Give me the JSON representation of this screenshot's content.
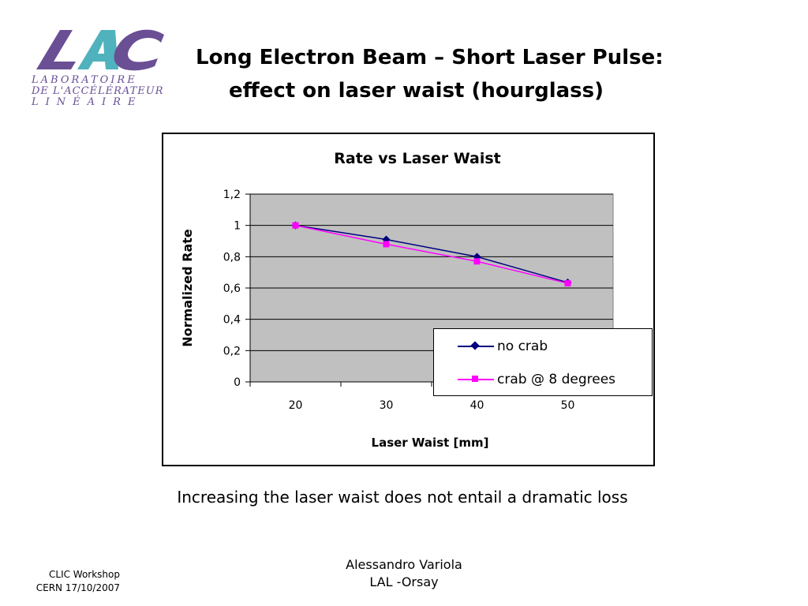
{
  "logo": {
    "line1": "LABORATOIRE",
    "line2": "DE L'ACCÉLÉRATEUR",
    "line3": "LINÉAIRE",
    "colors": {
      "purple": "#6a4f95",
      "teal": "#4fb2bd"
    }
  },
  "slide": {
    "title_line1": "Long Electron Beam – Short Laser Pulse:",
    "title_line2": "effect on laser waist (hourglass)",
    "caption": "Increasing the laser waist does not entail a dramatic loss",
    "footer_left_line1": "CLIC Workshop",
    "footer_left_line2": "CERN 17/10/2007",
    "footer_center_line1": "Alessandro Variola",
    "footer_center_line2": "LAL -Orsay"
  },
  "chart_data": {
    "type": "line",
    "title": "Rate vs Laser Waist",
    "xlabel": "Laser Waist [mm]",
    "ylabel": "Normalized Rate",
    "categories": [
      "20",
      "30",
      "40",
      "50"
    ],
    "ylim": [
      0,
      1.2
    ],
    "yticks": [
      "0",
      "0,2",
      "0,4",
      "0,6",
      "0,8",
      "1",
      "1,2"
    ],
    "grid": true,
    "plot_background": "#c0c0c0",
    "legend_position": "bottom-right",
    "series": [
      {
        "name": "no crab",
        "values": [
          1.0,
          0.91,
          0.8,
          0.635
        ],
        "color": "#000080",
        "marker": "diamond"
      },
      {
        "name": "crab @ 8 degrees",
        "values": [
          1.0,
          0.88,
          0.77,
          0.63
        ],
        "color": "#ff00ff",
        "marker": "square"
      }
    ]
  }
}
